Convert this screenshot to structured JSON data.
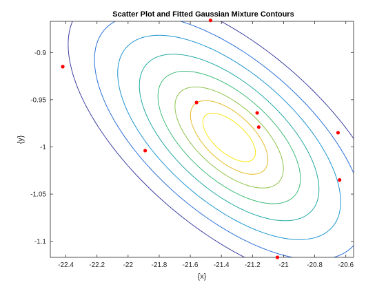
{
  "chart_data": {
    "type": "scatter",
    "title": "Scatter Plot and Fitted Gaussian Mixture Contours",
    "xlabel": "{x}",
    "ylabel": "{y}",
    "xlim": [
      -22.5,
      -20.55
    ],
    "ylim": [
      -1.117,
      -0.867
    ],
    "xticks": [
      -22.4,
      -22.2,
      -22,
      -21.8,
      -21.6,
      -21.4,
      -21.2,
      -21,
      -20.8,
      -20.6
    ],
    "xtick_labels": [
      "-22.4",
      "-22.2",
      "-22",
      "-21.8",
      "-21.6",
      "-21.4",
      "-21.2",
      "-21",
      "-20.8",
      "-20.6"
    ],
    "yticks": [
      -0.9,
      -0.95,
      -1,
      -1.05,
      -1.1
    ],
    "ytick_labels": [
      "-0.9",
      "-0.95",
      "-1",
      "-1.05",
      "-1.1"
    ],
    "grid": false,
    "box": true,
    "points": {
      "color": "#ff0000",
      "x": [
        -22.42,
        -22.42,
        -21.89,
        -21.56,
        -21.17,
        -21.16,
        -20.65,
        -20.64,
        -21.47,
        -21.04
      ],
      "y": [
        -0.915,
        -0.915,
        -1.004,
        -0.953,
        -0.964,
        -0.979,
        -0.985,
        -1.035,
        -0.866,
        -1.117
      ]
    },
    "gaussian_contours": {
      "center": [
        -21.35,
        -0.99
      ],
      "levels": [
        {
          "a": 0.17,
          "b": 0.02,
          "color": "#f9e513"
        },
        {
          "a": 0.25,
          "b": 0.031,
          "color": "#e4bb27"
        },
        {
          "a": 0.35,
          "b": 0.042,
          "color": "#8dc24a"
        },
        {
          "a": 0.46,
          "b": 0.055,
          "color": "#3dba77"
        },
        {
          "a": 0.58,
          "b": 0.069,
          "color": "#21a8a3"
        },
        {
          "a": 0.72,
          "b": 0.084,
          "color": "#1b94cf"
        },
        {
          "a": 0.87,
          "b": 0.1,
          "color": "#2a6fd8"
        },
        {
          "a": 1.04,
          "b": 0.118,
          "color": "#3b3fa0"
        }
      ],
      "orientation_slope": -0.0952
    }
  }
}
